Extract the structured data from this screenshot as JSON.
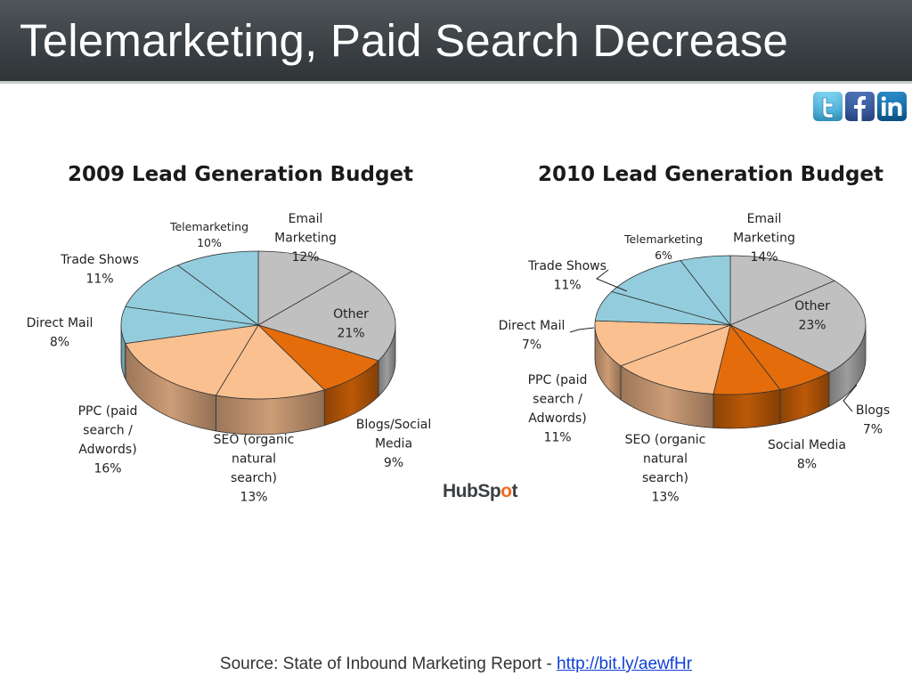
{
  "slide": {
    "title": "Telemarketing, Paid Search Decrease",
    "logo": {
      "text_before": "HubSp",
      "text_o": "o",
      "text_after": "t"
    },
    "source": {
      "text": "Source: State of Inbound Marketing Report - ",
      "link": "http://bit.ly/aewfHr"
    }
  },
  "social_icons": [
    {
      "name": "twitter-icon",
      "glyph": "t"
    },
    {
      "name": "facebook-icon",
      "glyph": "f"
    },
    {
      "name": "linkedin-icon",
      "glyph": "in"
    }
  ],
  "chart_data": [
    {
      "type": "pie",
      "title": "2009 Lead Generation Budget",
      "series": [
        {
          "name": "Email Marketing",
          "value": 12,
          "color": "#c0c0c0",
          "label": [
            "Email",
            "Marketing",
            "12%"
          ]
        },
        {
          "name": "Other",
          "value": 21,
          "color": "#c0c0c0",
          "label": [
            "Other",
            "21%"
          ]
        },
        {
          "name": "Blogs/Social Media",
          "value": 9,
          "color": "#e46c0a",
          "label": [
            "Blogs/Social",
            "Media",
            "9%"
          ]
        },
        {
          "name": "SEO (organic natural search)",
          "value": 13,
          "color": "#fac090",
          "label": [
            "SEO (organic",
            "natural",
            "search)",
            "13%"
          ]
        },
        {
          "name": "PPC (paid search / Adwords)",
          "value": 16,
          "color": "#fac090",
          "label": [
            "PPC (paid",
            "search /",
            "Adwords)",
            "16%"
          ]
        },
        {
          "name": "Direct Mail",
          "value": 8,
          "color": "#93cddd",
          "label": [
            "Direct Mail",
            "8%"
          ]
        },
        {
          "name": "Trade Shows",
          "value": 11,
          "color": "#93cddd",
          "label": [
            "Trade Shows",
            "11%"
          ]
        },
        {
          "name": "Telemarketing",
          "value": 10,
          "color": "#93cddd",
          "label": [
            "Telemarketing",
            "10%"
          ]
        }
      ]
    },
    {
      "type": "pie",
      "title": "2010 Lead Generation Budget",
      "series": [
        {
          "name": "Email Marketing",
          "value": 14,
          "color": "#c0c0c0",
          "label": [
            "Email",
            "Marketing",
            "14%"
          ]
        },
        {
          "name": "Other",
          "value": 23,
          "color": "#c0c0c0",
          "label": [
            "Other",
            "23%"
          ]
        },
        {
          "name": "Blogs",
          "value": 7,
          "color": "#e46c0a",
          "label": [
            "Blogs",
            "7%"
          ]
        },
        {
          "name": "Social Media",
          "value": 8,
          "color": "#e46c0a",
          "label": [
            "Social Media",
            "8%"
          ]
        },
        {
          "name": "SEO (organic natural search)",
          "value": 13,
          "color": "#fac090",
          "label": [
            "SEO (organic",
            "natural",
            "search)",
            "13%"
          ]
        },
        {
          "name": "PPC (paid search / Adwords)",
          "value": 11,
          "color": "#fac090",
          "label": [
            "PPC (paid",
            "search /",
            "Adwords)",
            "11%"
          ]
        },
        {
          "name": "Direct Mail",
          "value": 7,
          "color": "#93cddd",
          "label": [
            "Direct Mail",
            "7%"
          ]
        },
        {
          "name": "Trade Shows",
          "value": 11,
          "color": "#93cddd",
          "label": [
            "Trade Shows",
            "11%"
          ]
        },
        {
          "name": "Telemarketing",
          "value": 6,
          "color": "#93cddd",
          "label": [
            "Telemarketing",
            "6%"
          ]
        }
      ]
    }
  ]
}
